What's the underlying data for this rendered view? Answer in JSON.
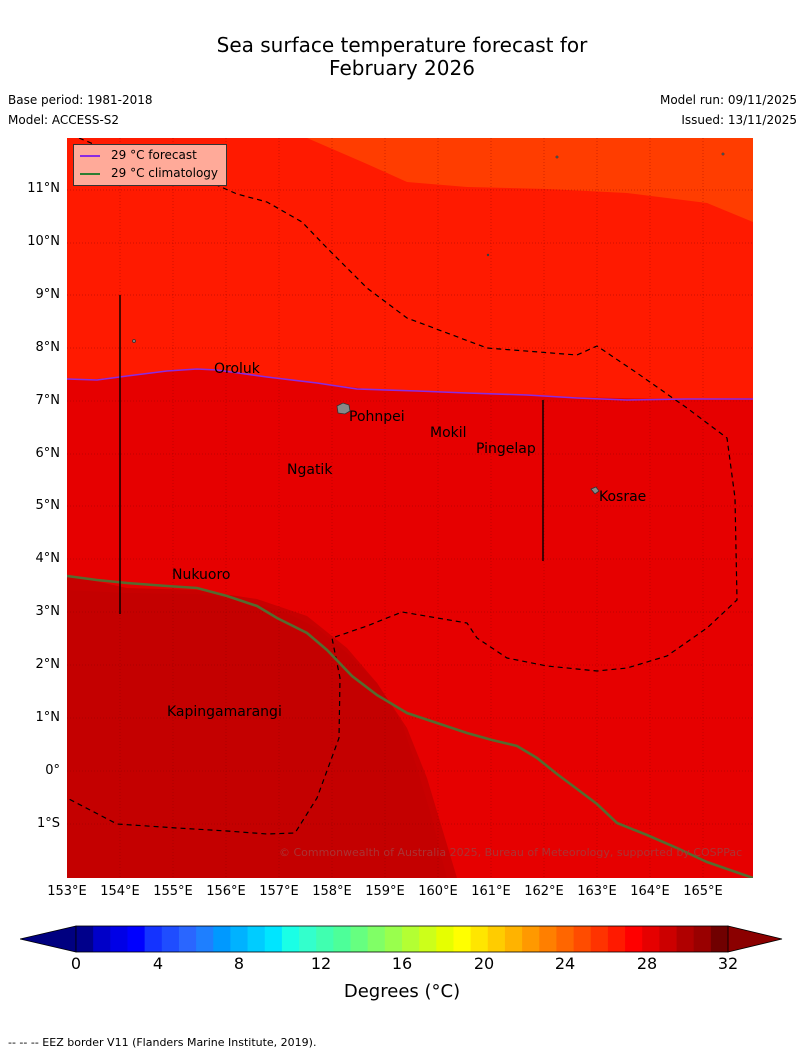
{
  "title": {
    "line1": "Sea surface temperature forecast for",
    "line2": "February 2026"
  },
  "meta": {
    "base_period": "Base period: 1981-2018",
    "model": "Model: ACCESS-S2",
    "model_run": "Model run: 09/11/2025",
    "issued": "Issued: 13/11/2025"
  },
  "legend": {
    "forecast": "29 °C  forecast",
    "climatology": "29 °C  climatology",
    "forecast_color": "#8a2be2",
    "climatology_color": "#2e7d32"
  },
  "lat_labels": [
    "11°N",
    "10°N",
    "9°N",
    "8°N",
    "7°N",
    "6°N",
    "5°N",
    "4°N",
    "3°N",
    "2°N",
    "1°N",
    "0°",
    "1°S"
  ],
  "lon_labels": [
    "153°E",
    "154°E",
    "155°E",
    "156°E",
    "157°E",
    "158°E",
    "159°E",
    "160°E",
    "161°E",
    "162°E",
    "163°E",
    "164°E",
    "165°E"
  ],
  "places": {
    "oroluk": "Oroluk",
    "pohnpei": "Pohnpei",
    "mokil": "Mokil",
    "pingelap": "Pingelap",
    "ngatik": "Ngatik",
    "kosrae": "Kosrae",
    "nukuoro": "Nukuoro",
    "kapingamarangi": "Kapingamarangi"
  },
  "copyright": "© Commonwealth of Australia 2025, Bureau of Meteorology, supported by COSPPac",
  "colorbar": {
    "ticks": [
      "0",
      "4",
      "8",
      "12",
      "16",
      "20",
      "24",
      "28",
      "32"
    ],
    "colors": [
      "#00008b",
      "#0000c8",
      "#0000e6",
      "#0000ff",
      "#1433ff",
      "#1f4dff",
      "#2a66ff",
      "#1e7fff",
      "#0099ff",
      "#00b2ff",
      "#00ccff",
      "#00e5ff",
      "#1affe6",
      "#33ffcc",
      "#40ffb0",
      "#4dff99",
      "#66ff80",
      "#80ff66",
      "#99ff4d",
      "#b3ff33",
      "#ccff1a",
      "#e6ff00",
      "#ffff00",
      "#ffe600",
      "#ffcc00",
      "#ffb300",
      "#ff9900",
      "#ff7f00",
      "#ff6600",
      "#ff4c00",
      "#ff3300",
      "#ff1a00",
      "#ff0000",
      "#e60000",
      "#cc0000",
      "#b00000",
      "#990000",
      "#700000"
    ],
    "unit_label": "Degrees (°C)"
  },
  "footnote": "--  --  -- EEZ border V11 (Flanders Marine Institute, 2019).",
  "map_colors": {
    "sst_over_29_5": "#ff3d00",
    "sst_29": "#ff1a00",
    "sst_28": "#e60000",
    "sst_27": "#c80000",
    "sst_26": "#c40000"
  }
}
